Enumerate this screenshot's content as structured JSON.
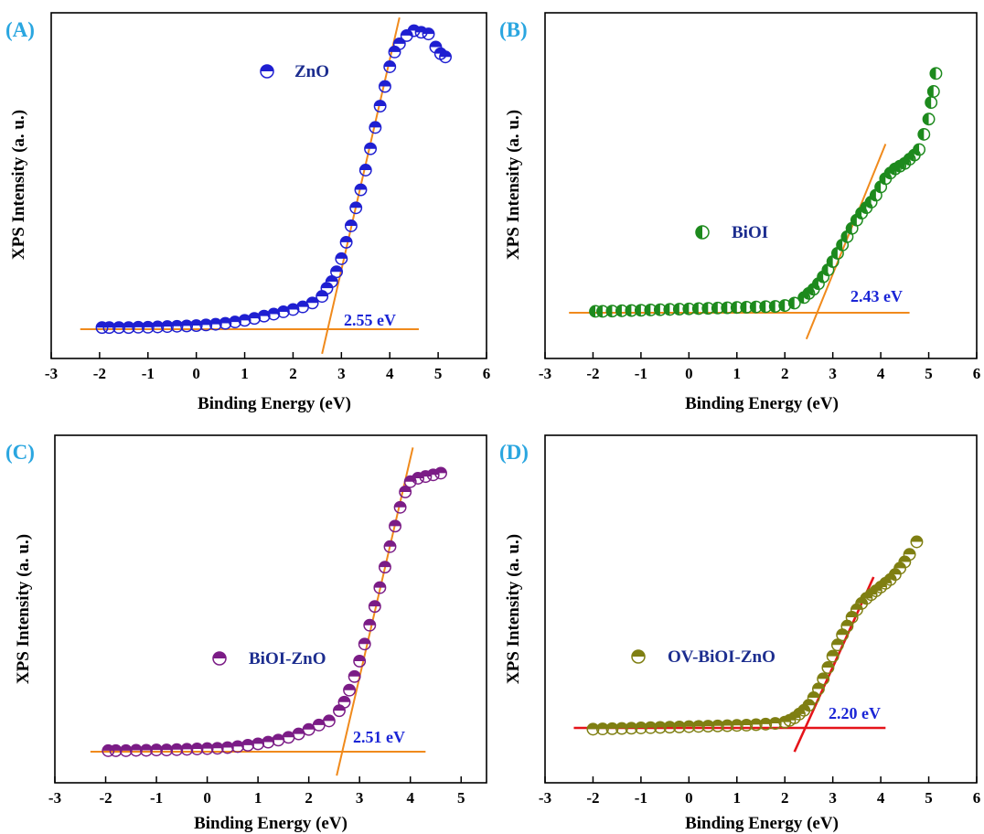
{
  "chart_data": [
    {
      "type": "scatter",
      "panel_label": "(A)",
      "xlabel": "Binding Energy (eV)",
      "ylabel": "XPS Intensity (a. u.)",
      "xlim": [
        -3,
        6
      ],
      "x_ticks": [
        "-3",
        "-2",
        "-1",
        "0",
        "1",
        "2",
        "3",
        "4",
        "5",
        "6"
      ],
      "ylim": [
        0,
        100
      ],
      "color": "#1f1fd1",
      "fit_color": "#f08a1c",
      "series": [
        {
          "name": "ZnO",
          "points": [
            [
              -1.95,
              0.5
            ],
            [
              -1.8,
              0.5
            ],
            [
              -1.6,
              0.5
            ],
            [
              -1.4,
              0.5
            ],
            [
              -1.2,
              0.6
            ],
            [
              -1.0,
              0.6
            ],
            [
              -0.8,
              0.7
            ],
            [
              -0.6,
              0.8
            ],
            [
              -0.4,
              0.9
            ],
            [
              -0.2,
              1.0
            ],
            [
              0.0,
              1.1
            ],
            [
              0.2,
              1.3
            ],
            [
              0.4,
              1.5
            ],
            [
              0.6,
              1.8
            ],
            [
              0.8,
              2.2
            ],
            [
              1.0,
              2.7
            ],
            [
              1.2,
              3.3
            ],
            [
              1.4,
              4.0
            ],
            [
              1.6,
              4.6
            ],
            [
              1.8,
              5.3
            ],
            [
              2.0,
              6.0
            ],
            [
              2.2,
              6.8
            ],
            [
              2.4,
              8.0
            ],
            [
              2.6,
              10.0
            ],
            [
              2.7,
              12.5
            ],
            [
              2.8,
              14.5
            ],
            [
              2.9,
              17.5
            ],
            [
              3.0,
              21.5
            ],
            [
              3.1,
              26.5
            ],
            [
              3.2,
              31.5
            ],
            [
              3.3,
              37.0
            ],
            [
              3.4,
              42.5
            ],
            [
              3.5,
              48.5
            ],
            [
              3.6,
              55.0
            ],
            [
              3.7,
              61.5
            ],
            [
              3.8,
              68.0
            ],
            [
              3.9,
              74.0
            ],
            [
              4.0,
              80.0
            ],
            [
              4.1,
              84.5
            ],
            [
              4.2,
              87.0
            ],
            [
              4.35,
              89.5
            ],
            [
              4.5,
              91.0
            ],
            [
              4.65,
              90.5
            ],
            [
              4.8,
              90.0
            ],
            [
              4.95,
              86.0
            ],
            [
              5.05,
              84.0
            ],
            [
              5.15,
              83.0
            ]
          ]
        }
      ],
      "fit_lines": [
        {
          "x": [
            -2.4,
            4.6
          ],
          "y": [
            0.0,
            0.0
          ]
        },
        {
          "x": [
            2.6,
            4.2
          ],
          "y": [
            -7.5,
            95.0
          ]
        }
      ],
      "annotations": [
        {
          "text": "2.55 eV",
          "x": 3.2,
          "y": 3.5
        }
      ]
    },
    {
      "type": "scatter",
      "panel_label": "(B)",
      "xlabel": "Binding Energy (eV)",
      "ylabel": "XPS Intensity (a. u.)",
      "xlim": [
        -3,
        6
      ],
      "x_ticks": [
        "-3",
        "-2",
        "-1",
        "0",
        "1",
        "2",
        "3",
        "4",
        "5",
        "6"
      ],
      "ylim": [
        0,
        100
      ],
      "color": "#1d8a1d",
      "fit_color": "#f08a1c",
      "series": [
        {
          "name": "BiOI",
          "points": [
            [
              -1.95,
              0.5
            ],
            [
              -1.8,
              0.5
            ],
            [
              -1.6,
              0.6
            ],
            [
              -1.4,
              0.7
            ],
            [
              -1.2,
              0.8
            ],
            [
              -1.0,
              0.9
            ],
            [
              -0.8,
              1.0
            ],
            [
              -0.6,
              1.1
            ],
            [
              -0.4,
              1.2
            ],
            [
              -0.2,
              1.3
            ],
            [
              0.0,
              1.4
            ],
            [
              0.2,
              1.5
            ],
            [
              0.4,
              1.6
            ],
            [
              0.6,
              1.7
            ],
            [
              0.8,
              1.8
            ],
            [
              1.0,
              1.9
            ],
            [
              1.2,
              2.0
            ],
            [
              1.4,
              2.1
            ],
            [
              1.6,
              2.2
            ],
            [
              1.8,
              2.3
            ],
            [
              2.0,
              2.6
            ],
            [
              2.2,
              3.5
            ],
            [
              2.4,
              5.5
            ],
            [
              2.5,
              7.0
            ],
            [
              2.6,
              8.5
            ],
            [
              2.7,
              10.5
            ],
            [
              2.8,
              13.0
            ],
            [
              2.9,
              15.5
            ],
            [
              3.0,
              18.5
            ],
            [
              3.1,
              21.5
            ],
            [
              3.2,
              24.5
            ],
            [
              3.3,
              27.5
            ],
            [
              3.4,
              30.5
            ],
            [
              3.5,
              33.5
            ],
            [
              3.6,
              36.0
            ],
            [
              3.7,
              38.0
            ],
            [
              3.8,
              40.0
            ],
            [
              3.9,
              42.5
            ],
            [
              4.0,
              45.5
            ],
            [
              4.1,
              48.5
            ],
            [
              4.2,
              50.5
            ],
            [
              4.3,
              52.0
            ],
            [
              4.4,
              53.0
            ],
            [
              4.5,
              54.0
            ],
            [
              4.6,
              55.5
            ],
            [
              4.7,
              57.0
            ],
            [
              4.8,
              59.0
            ],
            [
              4.9,
              64.5
            ],
            [
              5.0,
              70.0
            ],
            [
              5.05,
              76.0
            ],
            [
              5.1,
              80.0
            ],
            [
              5.15,
              86.5
            ]
          ]
        }
      ],
      "fit_lines": [
        {
          "x": [
            -2.5,
            4.6
          ],
          "y": [
            0.0,
            0.0
          ]
        },
        {
          "x": [
            2.45,
            4.1
          ],
          "y": [
            -9.5,
            61.0
          ]
        }
      ],
      "annotations": [
        {
          "text": "2.43 eV",
          "x": 3.2,
          "y": 4.0
        }
      ]
    },
    {
      "type": "scatter",
      "panel_label": "(C)",
      "xlabel": "Binding Energy (eV)",
      "ylabel": "XPS Intensity (a. u.)",
      "xlim": [
        -3,
        5.5
      ],
      "x_ticks": [
        "-3",
        "-2",
        "-1",
        "0",
        "1",
        "2",
        "3",
        "4",
        "5"
      ],
      "ylim": [
        0,
        100
      ],
      "color": "#7b1c86",
      "fit_color": "#f08a1c",
      "series": [
        {
          "name": "BiOI-ZnO",
          "points": [
            [
              -1.95,
              0.3
            ],
            [
              -1.8,
              0.3
            ],
            [
              -1.6,
              0.3
            ],
            [
              -1.4,
              0.4
            ],
            [
              -1.2,
              0.4
            ],
            [
              -1.0,
              0.5
            ],
            [
              -0.8,
              0.5
            ],
            [
              -0.6,
              0.6
            ],
            [
              -0.4,
              0.7
            ],
            [
              -0.2,
              0.8
            ],
            [
              0.0,
              0.9
            ],
            [
              0.2,
              1.0
            ],
            [
              0.4,
              1.2
            ],
            [
              0.6,
              1.5
            ],
            [
              0.8,
              1.9
            ],
            [
              1.0,
              2.3
            ],
            [
              1.2,
              2.8
            ],
            [
              1.4,
              3.4
            ],
            [
              1.6,
              4.2
            ],
            [
              1.8,
              5.2
            ],
            [
              2.0,
              6.5
            ],
            [
              2.2,
              7.8
            ],
            [
              2.4,
              9.0
            ],
            [
              2.6,
              12.0
            ],
            [
              2.7,
              14.5
            ],
            [
              2.8,
              18.0
            ],
            [
              2.9,
              22.0
            ],
            [
              3.0,
              26.5
            ],
            [
              3.1,
              31.5
            ],
            [
              3.2,
              37.0
            ],
            [
              3.3,
              42.5
            ],
            [
              3.4,
              48.0
            ],
            [
              3.5,
              54.0
            ],
            [
              3.6,
              60.0
            ],
            [
              3.7,
              66.0
            ],
            [
              3.8,
              71.5
            ],
            [
              3.9,
              76.0
            ],
            [
              4.0,
              79.0
            ],
            [
              4.15,
              80.0
            ],
            [
              4.3,
              80.5
            ],
            [
              4.45,
              81.0
            ],
            [
              4.6,
              81.5
            ]
          ]
        }
      ],
      "fit_lines": [
        {
          "x": [
            -2.3,
            4.3
          ],
          "y": [
            0.0,
            0.0
          ]
        },
        {
          "x": [
            2.55,
            4.05
          ],
          "y": [
            -7.0,
            89.0
          ]
        }
      ],
      "annotations": [
        {
          "text": "2.51 eV",
          "x": 3.1,
          "y": 2.5
        }
      ]
    },
    {
      "type": "scatter",
      "panel_label": "(D)",
      "xlabel": "Binding Energy (eV)",
      "ylabel": "XPS Intensity (a. u.)",
      "xlim": [
        -3,
        6
      ],
      "x_ticks": [
        "-3",
        "-2",
        "-1",
        "0",
        "1",
        "2",
        "3",
        "4",
        "5",
        "6"
      ],
      "ylim": [
        0,
        100
      ],
      "color": "#7f7f12",
      "fit_color": "#e5141a",
      "series": [
        {
          "name": "OV-BiOI-ZnO",
          "points": [
            [
              -2.0,
              -0.5
            ],
            [
              -1.8,
              -0.4
            ],
            [
              -1.6,
              -0.3
            ],
            [
              -1.4,
              -0.2
            ],
            [
              -1.2,
              -0.1
            ],
            [
              -1.0,
              0.0
            ],
            [
              -0.8,
              0.1
            ],
            [
              -0.6,
              0.2
            ],
            [
              -0.4,
              0.3
            ],
            [
              -0.2,
              0.4
            ],
            [
              0.0,
              0.5
            ],
            [
              0.2,
              0.6
            ],
            [
              0.4,
              0.7
            ],
            [
              0.6,
              0.8
            ],
            [
              0.8,
              0.9
            ],
            [
              1.0,
              1.0
            ],
            [
              1.2,
              1.1
            ],
            [
              1.4,
              1.3
            ],
            [
              1.6,
              1.5
            ],
            [
              1.8,
              1.8
            ],
            [
              2.0,
              2.3
            ],
            [
              2.1,
              3.0
            ],
            [
              2.2,
              4.0
            ],
            [
              2.3,
              5.5
            ],
            [
              2.4,
              7.0
            ],
            [
              2.5,
              9.0
            ],
            [
              2.6,
              12.0
            ],
            [
              2.7,
              15.5
            ],
            [
              2.8,
              19.5
            ],
            [
              2.9,
              24.0
            ],
            [
              3.0,
              28.5
            ],
            [
              3.1,
              33.0
            ],
            [
              3.2,
              37.0
            ],
            [
              3.3,
              40.5
            ],
            [
              3.4,
              44.0
            ],
            [
              3.5,
              47.0
            ],
            [
              3.6,
              49.5
            ],
            [
              3.7,
              51.5
            ],
            [
              3.8,
              53.0
            ],
            [
              3.9,
              54.5
            ],
            [
              4.0,
              56.0
            ],
            [
              4.1,
              57.5
            ],
            [
              4.2,
              59.0
            ],
            [
              4.3,
              61.0
            ],
            [
              4.4,
              63.5
            ],
            [
              4.5,
              66.0
            ],
            [
              4.6,
              69.0
            ],
            [
              4.75,
              74.0
            ]
          ]
        }
      ],
      "fit_lines": [
        {
          "x": [
            -2.4,
            4.1
          ],
          "y": [
            0.0,
            0.0
          ]
        },
        {
          "x": [
            2.2,
            3.85
          ],
          "y": [
            -9.5,
            60.0
          ]
        }
      ],
      "annotations": [
        {
          "text": "2.20 eV",
          "x": 2.7,
          "y": 3.5
        }
      ]
    }
  ]
}
